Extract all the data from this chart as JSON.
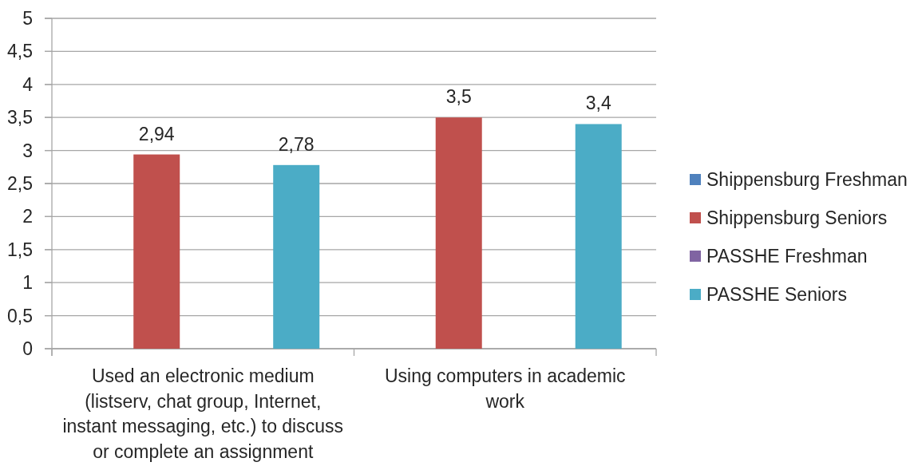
{
  "chart_data": {
    "type": "bar",
    "categories": [
      "Used an electronic medium (listserv, chat group, Internet, instant messaging, etc.) to discuss or complete an assignment",
      "Using computers in academic work"
    ],
    "series": [
      {
        "name": "Shippensburg Freshman",
        "color": "#4f81bd",
        "values": [
          null,
          null
        ]
      },
      {
        "name": "Shippensburg Seniors",
        "color": "#c0504d",
        "values": [
          2.94,
          3.5
        ],
        "value_labels": [
          "2,94",
          "3,5"
        ]
      },
      {
        "name": "PASSHE Freshman",
        "color": "#8064a2",
        "values": [
          null,
          null
        ]
      },
      {
        "name": "PASSHE Seniors",
        "color": "#4bacc6",
        "values": [
          2.78,
          3.4
        ],
        "value_labels": [
          "2,78",
          "3,4"
        ]
      }
    ],
    "ylim": [
      0,
      5
    ],
    "yticks": [
      0,
      {
        "value": 0.5,
        "label": "0,5"
      },
      1,
      {
        "value": 1.5,
        "label": "1,5"
      },
      2,
      {
        "value": 2.5,
        "label": "2,5"
      },
      3,
      {
        "value": 3.5,
        "label": "3,5"
      },
      4,
      {
        "value": 4.5,
        "label": "4,5"
      },
      5
    ],
    "grid": "y",
    "legend": "right"
  }
}
